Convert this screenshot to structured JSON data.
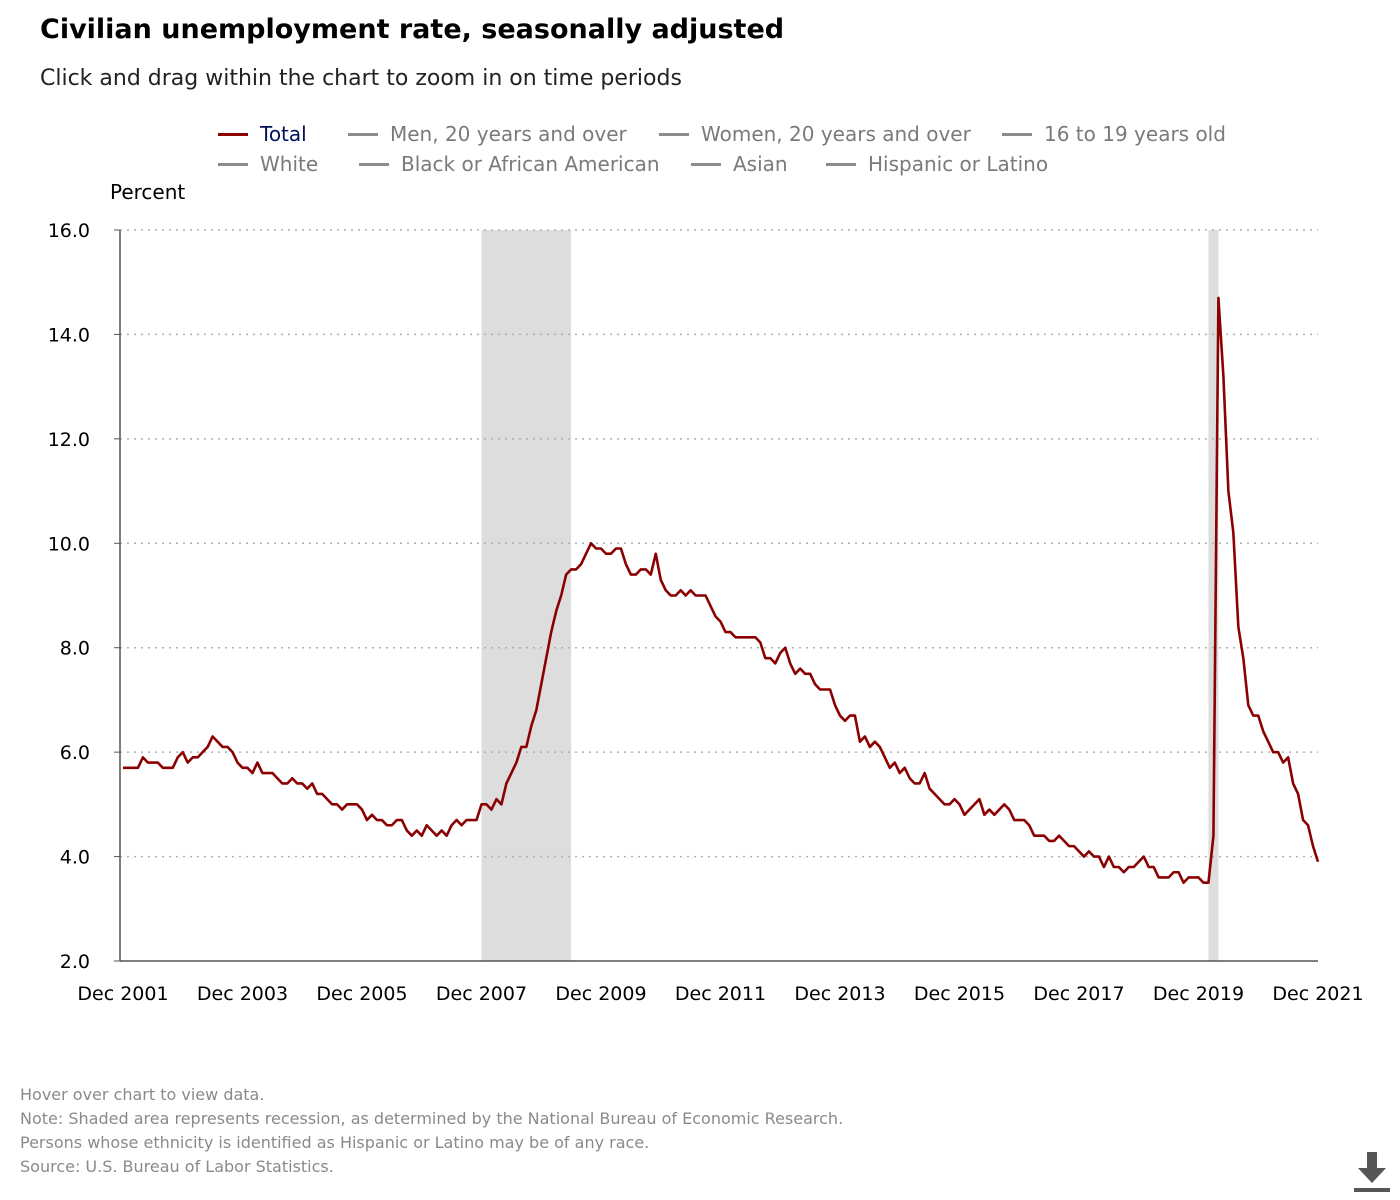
{
  "title": "Civilian unemployment rate, seasonally adjusted",
  "subtitle": "Click and drag within the chart to zoom in on time periods",
  "legend": [
    {
      "label": "Total",
      "active": true
    },
    {
      "label": "Men, 20 years and over",
      "active": false
    },
    {
      "label": "Women, 20 years and over",
      "active": false
    },
    {
      "label": "16 to 19 years old",
      "active": false
    },
    {
      "label": "White",
      "active": false
    },
    {
      "label": "Black or African American",
      "active": false
    },
    {
      "label": "Asian",
      "active": false
    },
    {
      "label": "Hispanic or Latino",
      "active": false
    }
  ],
  "notes": {
    "hover": "Hover over chart to view data.",
    "recession": "Note: Shaded area represents recession, as determined by the National Bureau of Economic Research.",
    "ethnicity": "Persons whose ethnicity is identified as Hispanic or Latino may be of any race.",
    "source": "Source: U.S. Bureau of Labor Statistics."
  },
  "colors": {
    "series": "#8b0000",
    "grid": "#b0b0b0",
    "recession": "#dddddd",
    "legend_active": "#00125a"
  },
  "icons": {
    "download": "download-icon"
  },
  "chart_data": {
    "type": "line",
    "title": "Civilian unemployment rate, seasonally adjusted",
    "ylabel": "Percent",
    "ylim": [
      2.0,
      16.0
    ],
    "yticks": [
      "2.0",
      "4.0",
      "6.0",
      "8.0",
      "10.0",
      "12.0",
      "14.0",
      "16.0"
    ],
    "xlim": [
      "Dec 2001",
      "Dec 2021"
    ],
    "xticks": [
      "Dec 2001",
      "Dec 2003",
      "Dec 2005",
      "Dec 2007",
      "Dec 2009",
      "Dec 2011",
      "Dec 2013",
      "Dec 2015",
      "Dec 2017",
      "Dec 2019",
      "Dec 2021"
    ],
    "grid": "horizontal dotted",
    "legend_position": "top",
    "recessions": [
      {
        "start": "Dec 2007",
        "end": "Jun 2009"
      },
      {
        "start": "Feb 2020",
        "end": "Apr 2020"
      }
    ],
    "series": [
      {
        "name": "Total",
        "start": "Dec 2001",
        "frequency": "monthly",
        "values": [
          5.7,
          5.7,
          5.7,
          5.7,
          5.9,
          5.8,
          5.8,
          5.8,
          5.7,
          5.7,
          5.7,
          5.9,
          6.0,
          5.8,
          5.9,
          5.9,
          6.0,
          6.1,
          6.3,
          6.2,
          6.1,
          6.1,
          6.0,
          5.8,
          5.7,
          5.7,
          5.6,
          5.8,
          5.6,
          5.6,
          5.6,
          5.5,
          5.4,
          5.4,
          5.5,
          5.4,
          5.4,
          5.3,
          5.4,
          5.2,
          5.2,
          5.1,
          5.0,
          5.0,
          4.9,
          5.0,
          5.0,
          5.0,
          4.9,
          4.7,
          4.8,
          4.7,
          4.7,
          4.6,
          4.6,
          4.7,
          4.7,
          4.5,
          4.4,
          4.5,
          4.4,
          4.6,
          4.5,
          4.4,
          4.5,
          4.4,
          4.6,
          4.7,
          4.6,
          4.7,
          4.7,
          4.7,
          5.0,
          5.0,
          4.9,
          5.1,
          5.0,
          5.4,
          5.6,
          5.8,
          6.1,
          6.1,
          6.5,
          6.8,
          7.3,
          7.8,
          8.3,
          8.7,
          9.0,
          9.4,
          9.5,
          9.5,
          9.6,
          9.8,
          10.0,
          9.9,
          9.9,
          9.8,
          9.8,
          9.9,
          9.9,
          9.6,
          9.4,
          9.4,
          9.5,
          9.5,
          9.4,
          9.8,
          9.3,
          9.1,
          9.0,
          9.0,
          9.1,
          9.0,
          9.1,
          9.0,
          9.0,
          9.0,
          8.8,
          8.6,
          8.5,
          8.3,
          8.3,
          8.2,
          8.2,
          8.2,
          8.2,
          8.2,
          8.1,
          7.8,
          7.8,
          7.7,
          7.9,
          8.0,
          7.7,
          7.5,
          7.6,
          7.5,
          7.5,
          7.3,
          7.2,
          7.2,
          7.2,
          6.9,
          6.7,
          6.6,
          6.7,
          6.7,
          6.2,
          6.3,
          6.1,
          6.2,
          6.1,
          5.9,
          5.7,
          5.8,
          5.6,
          5.7,
          5.5,
          5.4,
          5.4,
          5.6,
          5.3,
          5.2,
          5.1,
          5.0,
          5.0,
          5.1,
          5.0,
          4.8,
          4.9,
          5.0,
          5.1,
          4.8,
          4.9,
          4.8,
          4.9,
          5.0,
          4.9,
          4.7,
          4.7,
          4.7,
          4.6,
          4.4,
          4.4,
          4.4,
          4.3,
          4.3,
          4.4,
          4.3,
          4.2,
          4.2,
          4.1,
          4.0,
          4.1,
          4.0,
          4.0,
          3.8,
          4.0,
          3.8,
          3.8,
          3.7,
          3.8,
          3.8,
          3.9,
          4.0,
          3.8,
          3.8,
          3.6,
          3.6,
          3.6,
          3.7,
          3.7,
          3.5,
          3.6,
          3.6,
          3.6,
          3.5,
          3.5,
          4.4,
          14.7,
          13.2,
          11.0,
          10.2,
          8.4,
          7.8,
          6.9,
          6.7,
          6.7,
          6.4,
          6.2,
          6.0,
          6.0,
          5.8,
          5.9,
          5.4,
          5.2,
          4.7,
          4.6,
          4.2,
          3.9
        ]
      }
    ]
  }
}
